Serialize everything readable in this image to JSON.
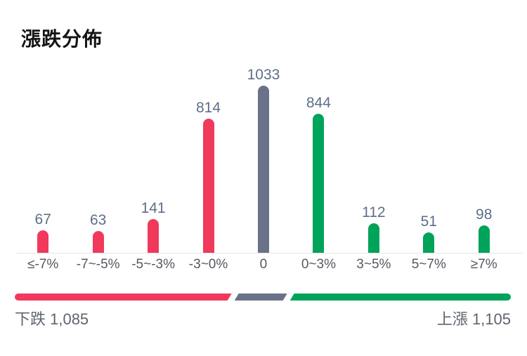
{
  "title": "漲跌分佈",
  "colors": {
    "down": "#F0395B",
    "flat": "#697288",
    "up": "#00A35A",
    "title_text": "#141414",
    "value_label": "#5E6E88",
    "axis_label": "#55585F",
    "baseline": "#E4E4E6",
    "summary_text": "#5E646E"
  },
  "chart_data": {
    "type": "bar",
    "title": "漲跌分佈",
    "categories": [
      "≤-7%",
      "-7~-5%",
      "-5~-3%",
      "-3~0%",
      "0",
      "0~3%",
      "3~5%",
      "5~7%",
      "≥7%"
    ],
    "values": [
      67,
      63,
      141,
      814,
      1033,
      844,
      112,
      51,
      98
    ],
    "series_colors": [
      "down",
      "down",
      "down",
      "down",
      "flat",
      "up",
      "up",
      "up",
      "up"
    ],
    "xlabel": "",
    "ylabel": "",
    "grid": false,
    "value_labels": true,
    "legend": false
  },
  "ratio_bar": {
    "down": 1085,
    "flat": 1033,
    "up": 1105
  },
  "summary": {
    "down_text": "下跌 1,085",
    "up_text": "上漲 1,105"
  }
}
